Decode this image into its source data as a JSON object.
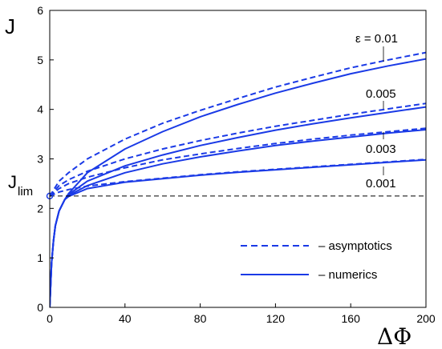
{
  "chart_data": {
    "type": "line",
    "ylabel": "J",
    "xlabel": "ΔΦ",
    "xlim": [
      0,
      200
    ],
    "ylim": [
      0,
      6
    ],
    "x_ticks": [
      "0",
      "40",
      "80",
      "120",
      "160",
      "200"
    ],
    "y_ticks": [
      "0",
      "1",
      "2",
      "3",
      "4",
      "5",
      "6"
    ],
    "reference_line": {
      "label_main": "J",
      "label_sub": "lim",
      "y": 2.25,
      "style": "dashed",
      "color": "#000000"
    },
    "legend": [
      {
        "label": "– asymptotics",
        "style": "dashed"
      },
      {
        "label": "– numerics",
        "style": "solid"
      }
    ],
    "legend_placement": "bottom-right",
    "grid": false,
    "series_color": "#1a3ae6",
    "curve_labels": [
      "ε = 0.01",
      "0.005",
      "0.003",
      "0.001"
    ],
    "series": [
      {
        "epsilon": "0.01",
        "style": "dashed",
        "x": [
          0,
          5,
          10,
          20,
          40,
          60,
          80,
          100,
          120,
          140,
          160,
          180,
          200
        ],
        "y": [
          2.25,
          2.55,
          2.72,
          3.0,
          3.4,
          3.72,
          3.98,
          4.22,
          4.45,
          4.65,
          4.84,
          5.0,
          5.15
        ]
      },
      {
        "epsilon": "0.01",
        "style": "solid",
        "x": [
          0,
          1,
          2,
          3,
          5,
          8,
          10,
          20,
          40,
          60,
          80,
          100,
          120,
          140,
          160,
          180,
          200
        ],
        "y": [
          0,
          0.9,
          1.35,
          1.65,
          1.95,
          2.18,
          2.3,
          2.72,
          3.2,
          3.55,
          3.85,
          4.1,
          4.33,
          4.53,
          4.72,
          4.88,
          5.02
        ]
      },
      {
        "epsilon": "0.005",
        "style": "dashed",
        "x": [
          0,
          5,
          10,
          20,
          40,
          60,
          80,
          100,
          120,
          140,
          160,
          180,
          200
        ],
        "y": [
          2.25,
          2.46,
          2.58,
          2.75,
          3.0,
          3.2,
          3.37,
          3.52,
          3.66,
          3.78,
          3.9,
          4.01,
          4.12
        ]
      },
      {
        "epsilon": "0.005",
        "style": "solid",
        "x": [
          0,
          1,
          2,
          3,
          5,
          8,
          10,
          20,
          40,
          60,
          80,
          100,
          120,
          140,
          160,
          180,
          200
        ],
        "y": [
          0,
          0.9,
          1.35,
          1.65,
          1.95,
          2.18,
          2.28,
          2.55,
          2.86,
          3.08,
          3.27,
          3.43,
          3.58,
          3.71,
          3.83,
          3.94,
          4.05
        ]
      },
      {
        "epsilon": "0.003",
        "style": "dashed",
        "x": [
          0,
          5,
          10,
          20,
          40,
          60,
          80,
          100,
          120,
          140,
          160,
          180,
          200
        ],
        "y": [
          2.25,
          2.4,
          2.5,
          2.63,
          2.82,
          2.98,
          3.1,
          3.21,
          3.31,
          3.4,
          3.48,
          3.55,
          3.62
        ]
      },
      {
        "epsilon": "0.003",
        "style": "solid",
        "x": [
          0,
          1,
          2,
          3,
          5,
          8,
          10,
          20,
          40,
          60,
          80,
          100,
          120,
          140,
          160,
          180,
          200
        ],
        "y": [
          0,
          0.9,
          1.35,
          1.65,
          1.95,
          2.18,
          2.26,
          2.46,
          2.72,
          2.9,
          3.04,
          3.16,
          3.27,
          3.36,
          3.44,
          3.52,
          3.59
        ]
      },
      {
        "epsilon": "0.001",
        "style": "dashed",
        "x": [
          0,
          5,
          10,
          20,
          40,
          60,
          80,
          100,
          120,
          140,
          160,
          180,
          200
        ],
        "y": [
          2.25,
          2.33,
          2.38,
          2.45,
          2.54,
          2.61,
          2.68,
          2.74,
          2.79,
          2.84,
          2.89,
          2.94,
          2.99
        ]
      },
      {
        "epsilon": "0.001",
        "style": "solid",
        "x": [
          0,
          1,
          2,
          3,
          5,
          8,
          10,
          20,
          40,
          60,
          80,
          100,
          120,
          140,
          160,
          180,
          200
        ],
        "y": [
          0,
          0.9,
          1.35,
          1.65,
          1.95,
          2.18,
          2.24,
          2.4,
          2.53,
          2.6,
          2.67,
          2.73,
          2.78,
          2.83,
          2.88,
          2.93,
          2.98
        ]
      }
    ]
  }
}
